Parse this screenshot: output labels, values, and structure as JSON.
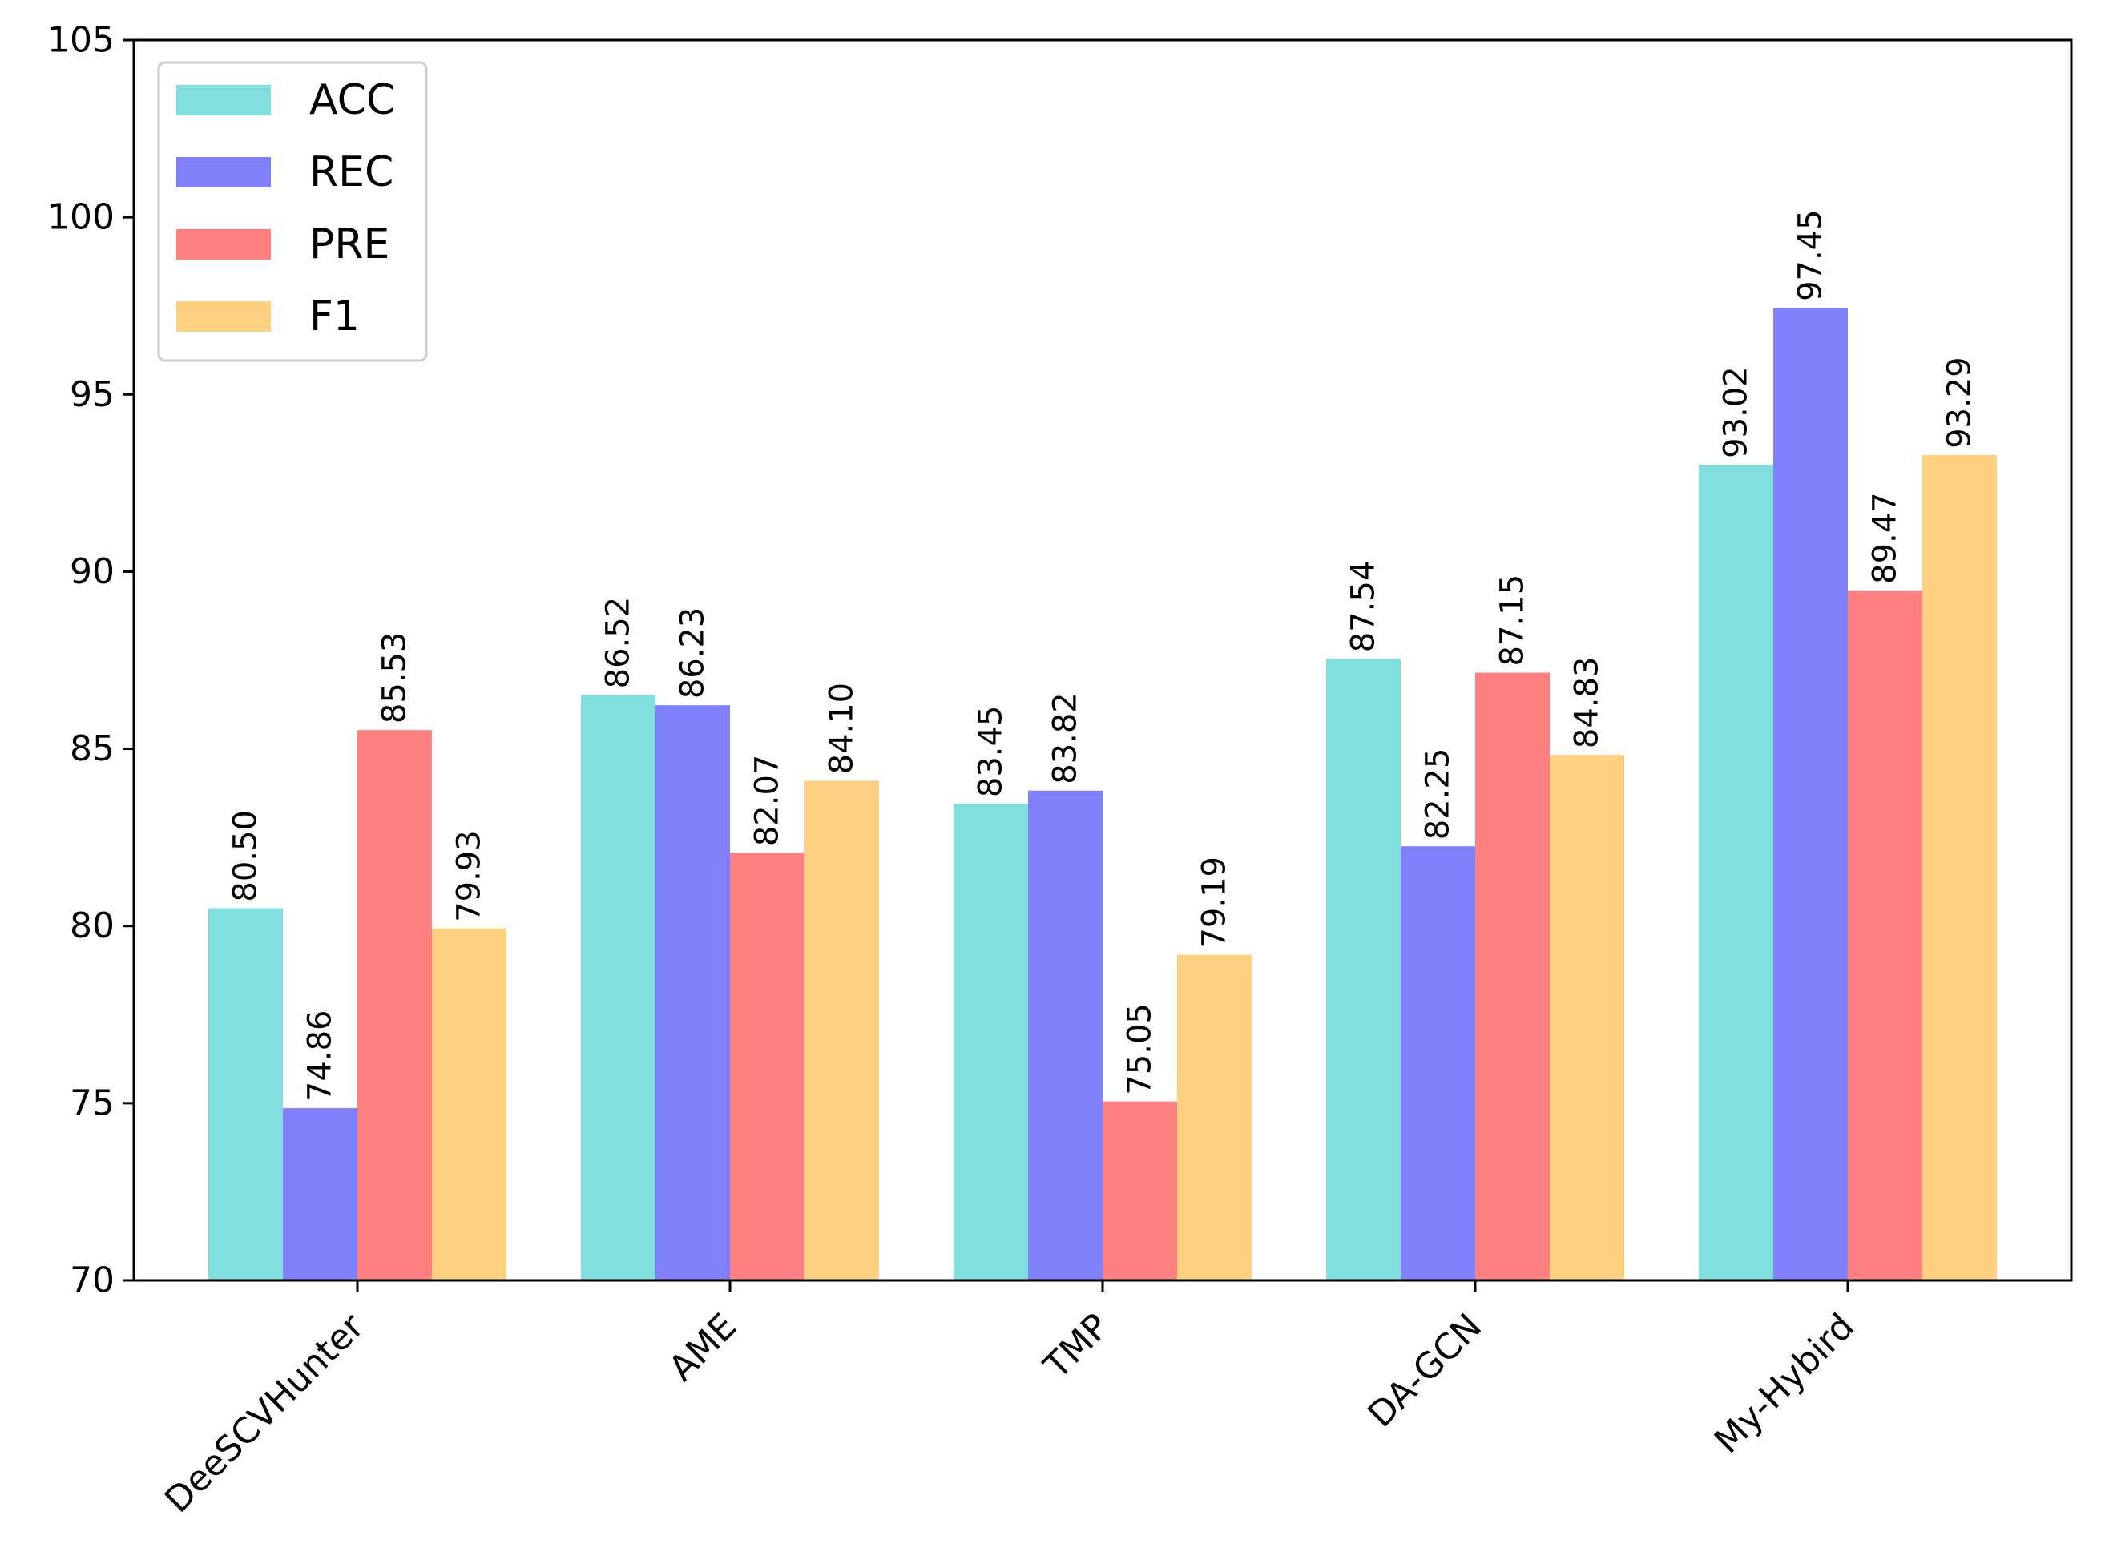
{
  "chart_data": {
    "type": "bar",
    "title": "",
    "xlabel": "",
    "ylabel": "",
    "ylim": [
      70,
      105
    ],
    "yticks": [
      70,
      75,
      80,
      85,
      90,
      95,
      100,
      105
    ],
    "grid": false,
    "legend_position": "top-left",
    "categories": [
      "DeeSCVHunter",
      "AME",
      "TMP",
      "DA-GCN",
      "My-Hybird"
    ],
    "series": [
      {
        "name": "ACC",
        "color": "#80dfdc",
        "values": [
          80.5,
          86.52,
          83.45,
          87.54,
          93.02
        ],
        "labels": [
          "80.50",
          "86.52",
          "83.45",
          "87.54",
          "93.02"
        ]
      },
      {
        "name": "REC",
        "color": "#8080fc",
        "values": [
          74.86,
          86.23,
          83.82,
          82.25,
          97.45
        ],
        "labels": [
          "74.86",
          "86.23",
          "83.82",
          "82.25",
          "97.45"
        ]
      },
      {
        "name": "PRE",
        "color": "#fe8080",
        "values": [
          85.53,
          82.07,
          75.05,
          87.15,
          89.47
        ],
        "labels": [
          "85.53",
          "82.07",
          "75.05",
          "87.15",
          "89.47"
        ]
      },
      {
        "name": "F1",
        "color": "#fed080",
        "values": [
          79.93,
          84.1,
          79.19,
          84.83,
          93.29
        ],
        "labels": [
          "79.93",
          "84.10",
          "79.19",
          "84.83",
          "93.29"
        ]
      }
    ]
  }
}
